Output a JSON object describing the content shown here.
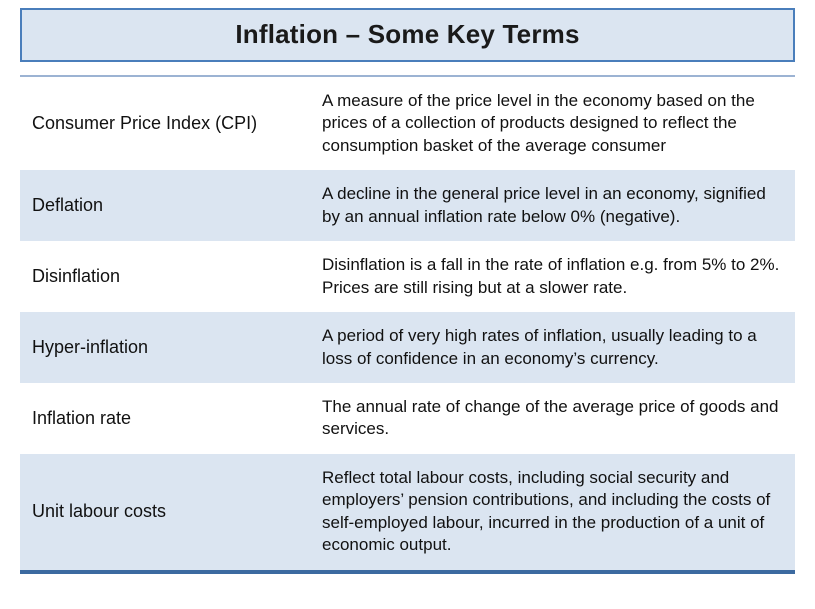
{
  "slide": {
    "title": "Inflation – Some Key Terms"
  },
  "table": {
    "rows": [
      {
        "term": "Consumer Price Index (CPI)",
        "definition": "A measure of the price level in the economy based on the prices of a collection of products designed to reflect the consumption basket of the average consumer"
      },
      {
        "term": "Deflation",
        "definition": "A decline in the general price level in an economy, signified by an annual inflation rate below 0% (negative)."
      },
      {
        "term": "Disinflation",
        "definition": "Disinflation is a fall in the rate of inflation e.g. from 5% to 2%. Prices are still rising but at a slower rate."
      },
      {
        "term": "Hyper-inflation",
        "definition": "A period of very high rates of inflation, usually leading to a loss of confidence in an economy’s currency."
      },
      {
        "term": "Inflation rate",
        "definition": "The annual rate of change of the average price of goods and services."
      },
      {
        "term": "Unit labour costs",
        "definition": "Reflect total labour costs, including social security and employers’ pension contributions, and including the costs of self-employed labour, incurred in the production of a unit of economic output."
      }
    ]
  },
  "colors": {
    "band": "#dbe5f1",
    "title_fill": "#dbe5f1",
    "title_border": "#4a7ebb",
    "rule_top": "#9cb3d3",
    "rule_bottom": "#3c6aa0"
  }
}
